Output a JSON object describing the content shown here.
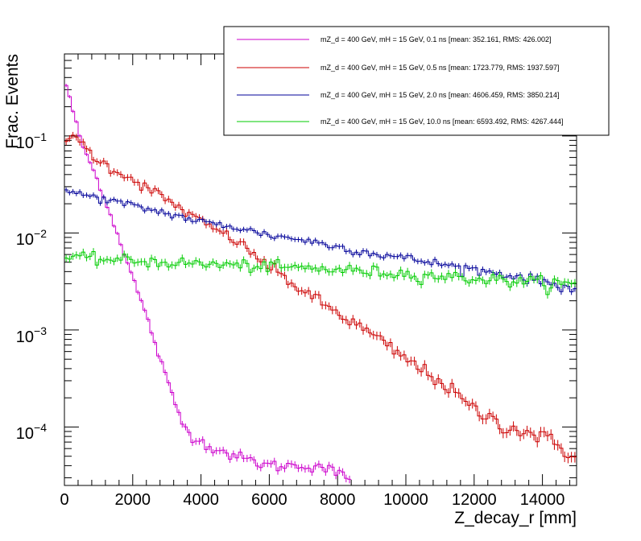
{
  "chart_data": {
    "type": "line",
    "title": "",
    "xlabel": "Z_decay_r [mm]",
    "ylabel": "Frac. Events",
    "xlim": [
      0,
      15000
    ],
    "ylim": [
      2.5e-05,
      0.7
    ],
    "yscale": "log",
    "x_ticks": [
      "0",
      "2000",
      "4000",
      "6000",
      "8000",
      "10000",
      "12000",
      "14000"
    ],
    "y_ticks": [
      {
        "base": "10",
        "exp": "−4"
      },
      {
        "base": "10",
        "exp": "−3"
      },
      {
        "base": "10",
        "exp": "−2"
      },
      {
        "base": "10",
        "exp": "−1"
      }
    ],
    "legend_position": "top-right",
    "series": [
      {
        "name": "mZ_d = 400 GeV, mH = 15 GeV, 0.1 ns [mean: 352.161, RMS: 426.002]",
        "color": "#cc00cc",
        "points": [
          [
            0,
            0.39
          ],
          [
            500,
            0.085
          ],
          [
            1000,
            0.033
          ],
          [
            1500,
            0.011
          ],
          [
            2000,
            0.0035
          ],
          [
            2500,
            0.0011
          ],
          [
            3000,
            0.0003
          ],
          [
            3500,
            0.0001
          ],
          [
            4000,
            7e-05
          ],
          [
            5000,
            5e-05
          ],
          [
            6000,
            4e-05
          ],
          [
            7500,
            4e-05
          ],
          [
            8250,
            3e-05
          ]
        ]
      },
      {
        "name": "mZ_d = 400 GeV, mH = 15 GeV, 0.5 ns [mean: 1723.779, RMS: 1937.597]",
        "color": "#cc0000",
        "points": [
          [
            0,
            0.1
          ],
          [
            500,
            0.085
          ],
          [
            1000,
            0.055
          ],
          [
            2000,
            0.036
          ],
          [
            3000,
            0.022
          ],
          [
            4000,
            0.013
          ],
          [
            5000,
            0.0085
          ],
          [
            6000,
            0.0045
          ],
          [
            7000,
            0.0025
          ],
          [
            8000,
            0.0015
          ],
          [
            9000,
            0.0009
          ],
          [
            10000,
            0.0005
          ],
          [
            11000,
            0.0003
          ],
          [
            12000,
            0.00015
          ],
          [
            13000,
            0.0001
          ],
          [
            14000,
            8e-05
          ],
          [
            15000,
            5e-05
          ]
        ]
      },
      {
        "name": "mZ_d = 400 GeV, mH = 15 GeV, 2.0 ns [mean: 4606.459, RMS: 3850.214]",
        "color": "#000099",
        "points": [
          [
            0,
            0.027
          ],
          [
            1000,
            0.023
          ],
          [
            2000,
            0.019
          ],
          [
            3000,
            0.016
          ],
          [
            4000,
            0.013
          ],
          [
            5000,
            0.0115
          ],
          [
            6000,
            0.0095
          ],
          [
            7000,
            0.0085
          ],
          [
            8000,
            0.0072
          ],
          [
            9000,
            0.0062
          ],
          [
            10000,
            0.0055
          ],
          [
            11000,
            0.0048
          ],
          [
            12000,
            0.0042
          ],
          [
            13000,
            0.0037
          ],
          [
            14000,
            0.0032
          ],
          [
            15000,
            0.0026
          ]
        ]
      },
      {
        "name": "mZ_d = 400 GeV, mH = 15 GeV, 10.0 ns [mean: 6593.492, RMS: 4267.444]",
        "color": "#00cc00",
        "points": [
          [
            0,
            0.0056
          ],
          [
            2000,
            0.0052
          ],
          [
            4000,
            0.0048
          ],
          [
            6000,
            0.0045
          ],
          [
            8000,
            0.0042
          ],
          [
            10000,
            0.0038
          ],
          [
            12000,
            0.0034
          ],
          [
            14000,
            0.0031
          ],
          [
            15000,
            0.0029
          ]
        ]
      }
    ]
  }
}
